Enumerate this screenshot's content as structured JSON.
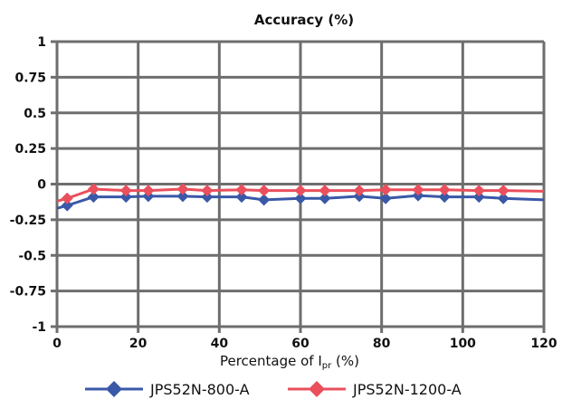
{
  "chart_data": {
    "type": "line",
    "title": "Accuracy (%)",
    "xlabel": {
      "prefix": "Percentage of I",
      "subscript": "pr",
      "suffix": " (%)"
    },
    "ylabel": "",
    "xlim": [
      0,
      120
    ],
    "ylim": [
      -1,
      1
    ],
    "xticks": [
      0,
      20,
      40,
      60,
      80,
      100,
      120
    ],
    "yticks": [
      1,
      0.75,
      0.5,
      0.25,
      0,
      -0.25,
      -0.5,
      -0.75,
      -1
    ],
    "xtick_labels": [
      "0",
      "20",
      "40",
      "60",
      "80",
      "100",
      "120"
    ],
    "ytick_labels": [
      "1",
      "0.75",
      "0.5",
      "0.25",
      "0",
      "-0.25",
      "-0.5",
      "-0.75",
      "-1"
    ],
    "grid": true,
    "legend_position": "bottom",
    "series": [
      {
        "name": "JPS52N-800-A",
        "color": "#3a58a8",
        "marker": "diamond",
        "x": [
          0,
          2.5,
          9,
          17,
          22.5,
          31,
          37,
          45.5,
          51,
          60,
          66,
          74.5,
          81,
          89,
          95.5,
          104,
          110,
          120
        ],
        "y": [
          -0.17,
          -0.15,
          -0.09,
          -0.09,
          -0.085,
          -0.085,
          -0.09,
          -0.09,
          -0.11,
          -0.1,
          -0.1,
          -0.085,
          -0.1,
          -0.08,
          -0.09,
          -0.09,
          -0.1,
          -0.11
        ],
        "markers": [
          false,
          true,
          true,
          true,
          true,
          true,
          true,
          true,
          true,
          true,
          true,
          true,
          true,
          true,
          true,
          true,
          true,
          false
        ]
      },
      {
        "name": "JPS52N-1200-A",
        "color": "#ea4f5c",
        "marker": "diamond",
        "x": [
          0,
          2.5,
          9,
          17,
          22.5,
          31,
          37,
          45.5,
          51,
          60,
          66,
          74.5,
          81,
          89,
          95.5,
          104,
          110,
          120
        ],
        "y": [
          -0.12,
          -0.1,
          -0.035,
          -0.045,
          -0.045,
          -0.035,
          -0.045,
          -0.04,
          -0.045,
          -0.045,
          -0.045,
          -0.045,
          -0.04,
          -0.04,
          -0.04,
          -0.045,
          -0.045,
          -0.05
        ],
        "markers": [
          false,
          true,
          true,
          true,
          true,
          true,
          true,
          true,
          true,
          true,
          true,
          true,
          true,
          true,
          true,
          true,
          true,
          false
        ]
      }
    ]
  }
}
